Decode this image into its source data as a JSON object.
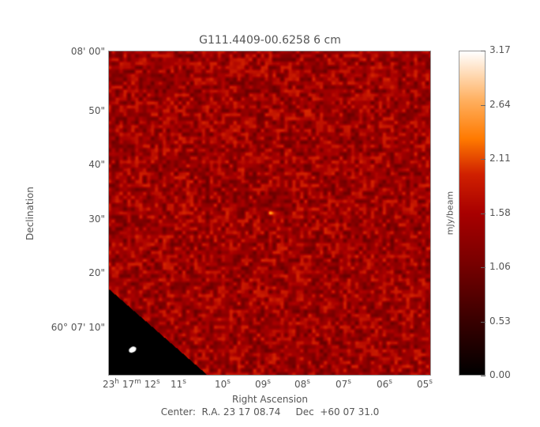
{
  "chart_data": {
    "type": "heatmap",
    "title": "G111.4409-00.6258 6 cm",
    "xlabel": "Right Ascension",
    "ylabel": "Declination",
    "x_tick_labels": [
      {
        "h": "23",
        "m": "17",
        "s": "12"
      },
      {
        "s": "11"
      },
      {
        "s": "10"
      },
      {
        "s": "09"
      },
      {
        "s": "08"
      },
      {
        "s": "07"
      },
      {
        "s": "06"
      },
      {
        "s": "05"
      }
    ],
    "y_tick_labels": [
      "08' 00\"",
      "50\"",
      "40\"",
      "30\"",
      "20\"",
      "60° 07' 10\""
    ],
    "colorbar": {
      "label": "mJy/beam",
      "ticks": [
        "3.17",
        "2.64",
        "2.11",
        "1.58",
        "1.06",
        "0.53",
        "0.00"
      ],
      "range": [
        0.0,
        3.17
      ],
      "colormap": [
        "#000000",
        "#a80000",
        "#ff7a00",
        "#ffffff"
      ]
    },
    "center_text": "Center:  R.A. 23 17 08.74     Dec  +60 07 31.0",
    "features": [
      "noise field",
      "compact source near center",
      "blanked lower-left corner",
      "beam ellipse"
    ]
  }
}
